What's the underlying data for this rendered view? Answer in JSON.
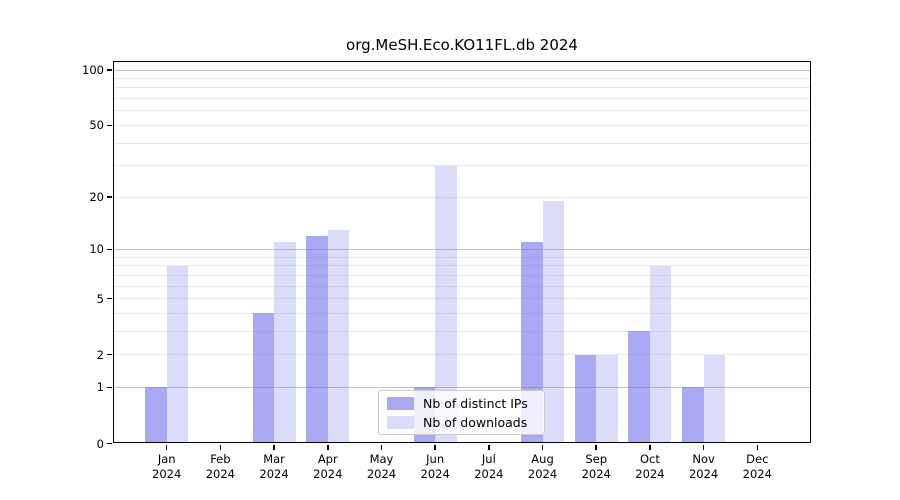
{
  "chart_data": {
    "type": "bar",
    "title": "org.MeSH.Eco.KO11FL.db 2024",
    "categories": [
      "Jan",
      "Feb",
      "Mar",
      "Apr",
      "May",
      "Jun",
      "Jul",
      "Aug",
      "Sep",
      "Oct",
      "Nov",
      "Dec"
    ],
    "year_label": "2024",
    "series": [
      {
        "name": "Nb of distinct IPs",
        "values": [
          1,
          0,
          4,
          12,
          0,
          1,
          0,
          11,
          2,
          3,
          1,
          0
        ],
        "color_base": "#6969eb",
        "alpha": 0.57
      },
      {
        "name": "Nb of downloads",
        "values": [
          8,
          0,
          11,
          13,
          0,
          30,
          0,
          19,
          2,
          8,
          2,
          0
        ],
        "color_base": "#6969eb",
        "alpha": 0.24
      }
    ],
    "yscale": "log1p",
    "ylim": [
      0,
      112
    ],
    "y_tick_values": [
      0,
      1,
      2,
      5,
      10,
      20,
      50,
      100
    ],
    "grid": {
      "major_values": [
        1,
        10,
        100
      ],
      "minor_values": [
        2,
        3,
        4,
        5,
        6,
        7,
        8,
        9,
        20,
        30,
        40,
        50,
        60,
        70,
        80,
        90
      ],
      "major_color": "#c3c3c3",
      "minor_color": "#eaeaea"
    },
    "legend": {
      "position": "bottom-center"
    },
    "xlabel": "",
    "ylabel": ""
  }
}
